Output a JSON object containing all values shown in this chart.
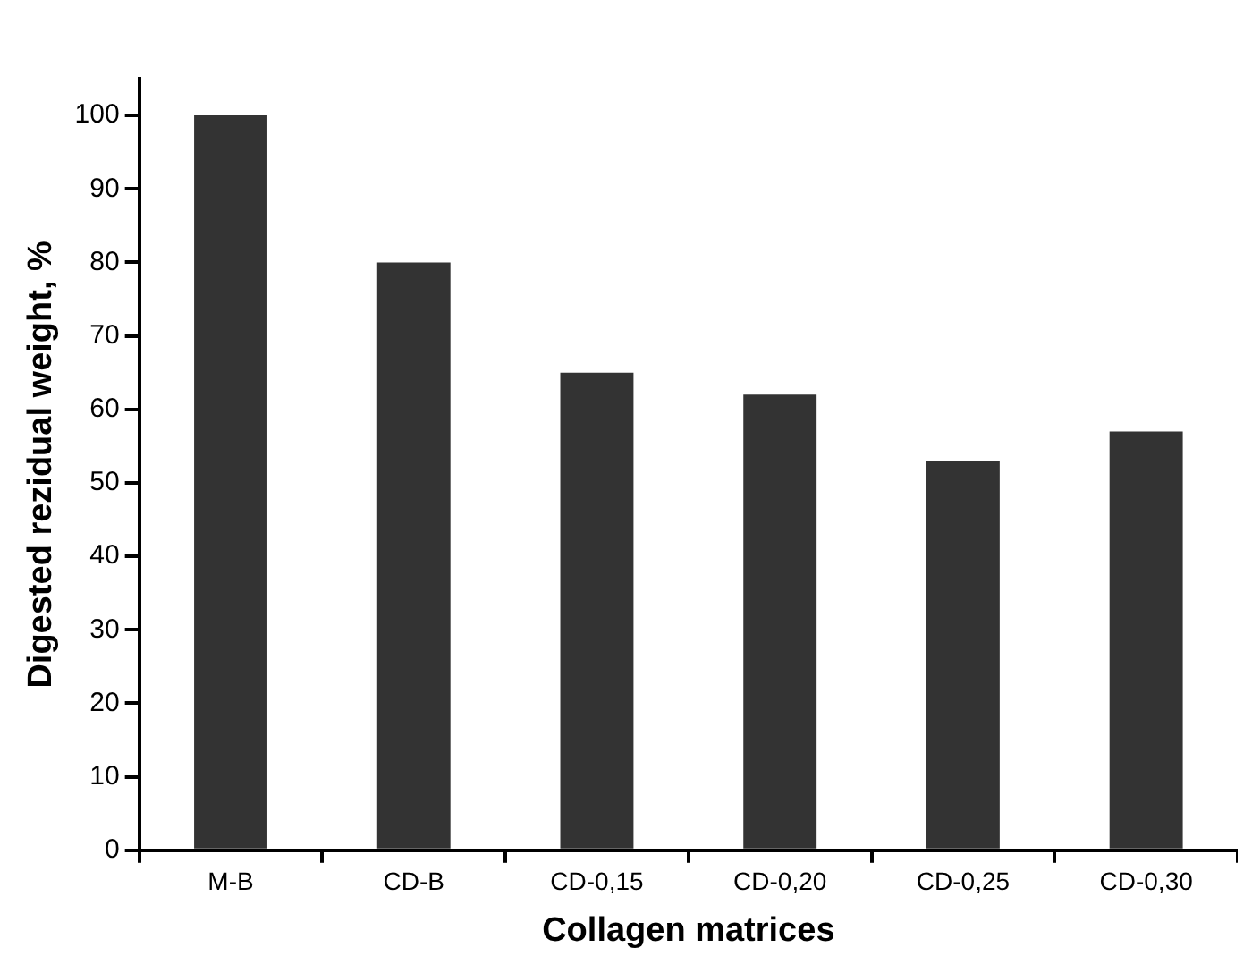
{
  "chart_data": {
    "type": "bar",
    "xlabel": "Collagen matrices",
    "ylabel": "Digested rezidual weight, %",
    "categories": [
      "M-B",
      "CD-B",
      "CD-0,15",
      "CD-0,20",
      "CD-0,25",
      "CD-0,30"
    ],
    "values": [
      100,
      80,
      65,
      62,
      53,
      57
    ],
    "color": "#333333",
    "ylim": [
      0,
      105
    ],
    "yticks": [
      0,
      10,
      20,
      30,
      40,
      50,
      60,
      70,
      80,
      90,
      100
    ],
    "grid": false,
    "legend": false
  }
}
